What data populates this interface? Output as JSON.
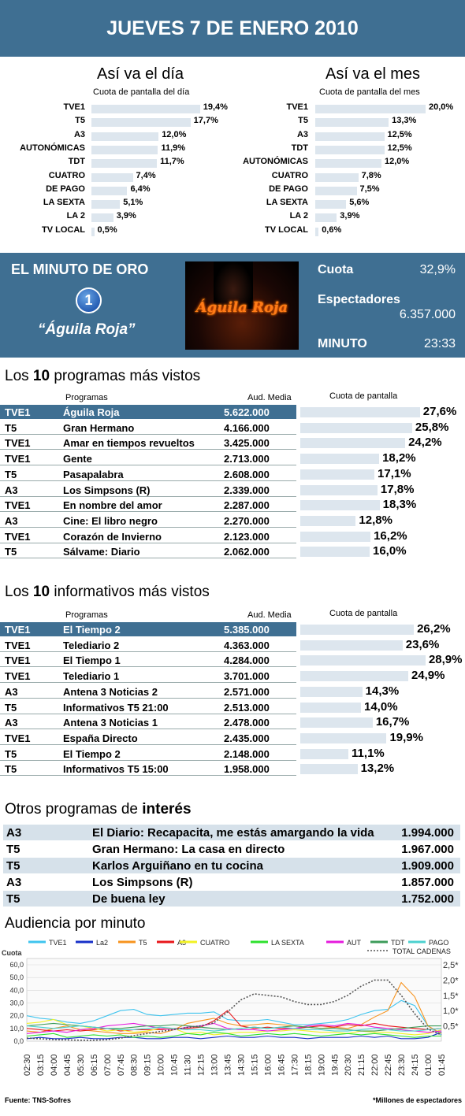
{
  "header": {
    "title": "JUEVES 7 DE ENERO 2010"
  },
  "dia": {
    "title": "Así va el día",
    "subtitle": "Cuota de pantalla del día",
    "rows": [
      {
        "label": "TVE1",
        "value": 19.4,
        "text": "19,4%"
      },
      {
        "label": "T5",
        "value": 17.7,
        "text": "17,7%"
      },
      {
        "label": "A3",
        "value": 12.0,
        "text": "12,0%"
      },
      {
        "label": "AUTONÓMICAS",
        "value": 11.9,
        "text": "11,9%"
      },
      {
        "label": "TDT",
        "value": 11.7,
        "text": "11,7%"
      },
      {
        "label": "CUATRO",
        "value": 7.4,
        "text": "7,4%"
      },
      {
        "label": "DE PAGO",
        "value": 6.4,
        "text": "6,4%"
      },
      {
        "label": "LA SEXTA",
        "value": 5.1,
        "text": "5,1%"
      },
      {
        "label": "LA 2",
        "value": 3.9,
        "text": "3,9%"
      },
      {
        "label": "TV LOCAL",
        "value": 0.5,
        "text": "0,5%"
      }
    ]
  },
  "mes": {
    "title": "Así va el mes",
    "subtitle": "Cuota de pantalla del mes",
    "rows": [
      {
        "label": "TVE1",
        "value": 20.0,
        "text": "20,0%"
      },
      {
        "label": "T5",
        "value": 13.3,
        "text": "13,3%"
      },
      {
        "label": "A3",
        "value": 12.5,
        "text": "12,5%"
      },
      {
        "label": "TDT",
        "value": 12.5,
        "text": "12,5%"
      },
      {
        "label": "AUTONÓMICAS",
        "value": 12.0,
        "text": "12,0%"
      },
      {
        "label": "CUATRO",
        "value": 7.8,
        "text": "7,8%"
      },
      {
        "label": "DE PAGO",
        "value": 7.5,
        "text": "7,5%"
      },
      {
        "label": "LA SEXTA",
        "value": 5.6,
        "text": "5,6%"
      },
      {
        "label": "LA 2",
        "value": 3.9,
        "text": "3,9%"
      },
      {
        "label": "TV LOCAL",
        "value": 0.6,
        "text": "0,6%"
      }
    ]
  },
  "minuto_oro": {
    "title": "EL MINUTO DE ORO",
    "channel_badge": "1",
    "program": "“Águila Roja”",
    "image_caption": "Águila Roja",
    "cuota_label": "Cuota",
    "cuota_value": "32,9%",
    "espectadores_label": "Espectadores",
    "espectadores_value": "6.357.000",
    "minuto_label": "MINUTO",
    "minuto_value": "23:33"
  },
  "programas": {
    "title_pre": "Los ",
    "title_bold": "10",
    "title_post": " programas más vistos",
    "col_programas": "Programas",
    "col_aud": "Aud. Media",
    "col_cuota": "Cuota de pantalla",
    "rows": [
      {
        "canal": "TVE1",
        "programa": "Águila Roja",
        "aud": "5.622.000",
        "cuota": 27.6,
        "cuota_text": "27,6%",
        "highlight": true
      },
      {
        "canal": "T5",
        "programa": "Gran Hermano",
        "aud": "4.166.000",
        "cuota": 25.8,
        "cuota_text": "25,8%"
      },
      {
        "canal": "TVE1",
        "programa": "Amar en tiempos revueltos",
        "aud": "3.425.000",
        "cuota": 24.2,
        "cuota_text": "24,2%"
      },
      {
        "canal": "TVE1",
        "programa": "Gente",
        "aud": "2.713.000",
        "cuota": 18.2,
        "cuota_text": "18,2%"
      },
      {
        "canal": "T5",
        "programa": "Pasapalabra",
        "aud": "2.608.000",
        "cuota": 17.1,
        "cuota_text": "17,1%"
      },
      {
        "canal": "A3",
        "programa": "Los Simpsons (R)",
        "aud": "2.339.000",
        "cuota": 17.8,
        "cuota_text": "17,8%"
      },
      {
        "canal": "TVE1",
        "programa": "En nombre del amor",
        "aud": "2.287.000",
        "cuota": 18.3,
        "cuota_text": "18,3%"
      },
      {
        "canal": "A3",
        "programa": "Cine: El libro negro",
        "aud": "2.270.000",
        "cuota": 12.8,
        "cuota_text": "12,8%"
      },
      {
        "canal": "TVE1",
        "programa": "Corazón de Invierno",
        "aud": "2.123.000",
        "cuota": 16.2,
        "cuota_text": "16,2%"
      },
      {
        "canal": "T5",
        "programa": "Sálvame: Diario",
        "aud": "2.062.000",
        "cuota": 16.0,
        "cuota_text": "16,0%"
      }
    ]
  },
  "informativos": {
    "title_pre": "Los ",
    "title_bold": "10",
    "title_post": " informativos más vistos",
    "col_programas": "Programas",
    "col_aud": "Aud. Media",
    "col_cuota": "Cuota de pantalla",
    "rows": [
      {
        "canal": "TVE1",
        "programa": "El Tiempo 2",
        "aud": "5.385.000",
        "cuota": 26.2,
        "cuota_text": "26,2%",
        "highlight": true
      },
      {
        "canal": "TVE1",
        "programa": "Telediario 2",
        "aud": "4.363.000",
        "cuota": 23.6,
        "cuota_text": "23,6%"
      },
      {
        "canal": "TVE1",
        "programa": "El Tiempo 1",
        "aud": "4.284.000",
        "cuota": 28.9,
        "cuota_text": "28,9%"
      },
      {
        "canal": "TVE1",
        "programa": "Telediario 1",
        "aud": "3.701.000",
        "cuota": 24.9,
        "cuota_text": "24,9%"
      },
      {
        "canal": "A3",
        "programa": "Antena 3 Noticias 2",
        "aud": "2.571.000",
        "cuota": 14.3,
        "cuota_text": "14,3%"
      },
      {
        "canal": "T5",
        "programa": "Informativos T5 21:00",
        "aud": "2.513.000",
        "cuota": 14.0,
        "cuota_text": "14,0%"
      },
      {
        "canal": "A3",
        "programa": "Antena 3 Noticias 1",
        "aud": "2.478.000",
        "cuota": 16.7,
        "cuota_text": "16,7%"
      },
      {
        "canal": "TVE1",
        "programa": "España Directo",
        "aud": "2.435.000",
        "cuota": 19.9,
        "cuota_text": "19,9%"
      },
      {
        "canal": "T5",
        "programa": "El Tiempo 2",
        "aud": "2.148.000",
        "cuota": 11.1,
        "cuota_text": "11,1%"
      },
      {
        "canal": "T5",
        "programa": "Informativos T5 15:00",
        "aud": "1.958.000",
        "cuota": 13.2,
        "cuota_text": "13,2%"
      }
    ]
  },
  "otros": {
    "title_pre": "Otros programas de ",
    "title_bold": "interés",
    "rows": [
      {
        "canal": "A3",
        "programa": "El Diario: Recapacita, me estás amargando la vida",
        "aud": "1.994.000"
      },
      {
        "canal": "T5",
        "programa": "Gran Hermano: La casa en directo",
        "aud": "1.967.000"
      },
      {
        "canal": "T5",
        "programa": "Karlos Arguiñano en tu cocina",
        "aud": "1.909.000"
      },
      {
        "canal": "A3",
        "programa": "Los Simpsons (R)",
        "aud": "1.857.000"
      },
      {
        "canal": "T5",
        "programa": "De buena ley",
        "aud": "1.752.000"
      }
    ]
  },
  "chart_data": {
    "type": "line",
    "title": "Audiencia por minuto",
    "ylabel": "Cuota",
    "ylim": [
      0,
      60
    ],
    "yticks": [
      "60,0",
      "50,0",
      "40,0",
      "30,0",
      "20,0",
      "10,0",
      "0,0"
    ],
    "y2lim": [
      0,
      2.5
    ],
    "y2ticks": [
      "2,5*",
      "2,0*",
      "1,5*",
      "1,0*",
      "0,5*"
    ],
    "categories": [
      "02:30",
      "03:15",
      "04:00",
      "04:45",
      "05:30",
      "06:15",
      "07:00",
      "07:45",
      "08:30",
      "09:15",
      "10:00",
      "10:45",
      "11:30",
      "12:15",
      "13:00",
      "13:45",
      "14:30",
      "15:15",
      "16:00",
      "16:45",
      "17:30",
      "18:15",
      "19:00",
      "19:45",
      "20:30",
      "21:15",
      "22:00",
      "22:45",
      "23:30",
      "24:15",
      "01:00",
      "01:45"
    ],
    "series": [
      {
        "name": "TVE1",
        "color": "#3fc4ee",
        "axis": "left",
        "values": [
          20,
          18,
          17,
          15,
          14,
          16,
          20,
          24,
          25,
          21,
          20,
          21,
          22,
          22,
          23,
          17,
          16,
          16,
          17,
          15,
          13,
          13,
          14,
          15,
          17,
          21,
          24,
          25,
          32,
          28,
          12,
          5
        ]
      },
      {
        "name": "La2",
        "color": "#1730c8",
        "axis": "left",
        "values": [
          2,
          3,
          2,
          2,
          3,
          2,
          2,
          3,
          3,
          2,
          2,
          3,
          3,
          2,
          3,
          4,
          3,
          3,
          4,
          3,
          3,
          2,
          3,
          3,
          3,
          4,
          3,
          4,
          2,
          2,
          3,
          7
        ]
      },
      {
        "name": "T5",
        "color": "#f7931e",
        "axis": "left",
        "values": [
          8,
          7,
          10,
          12,
          9,
          8,
          7,
          6,
          6,
          7,
          6,
          9,
          14,
          16,
          18,
          14,
          12,
          13,
          14,
          13,
          12,
          11,
          10,
          11,
          10,
          13,
          19,
          24,
          46,
          35,
          12,
          6
        ]
      },
      {
        "name": "A3",
        "color": "#e8161b",
        "axis": "left",
        "values": [
          10,
          9,
          8,
          9,
          8,
          9,
          10,
          8,
          9,
          9,
          9,
          10,
          10,
          11,
          16,
          24,
          12,
          10,
          11,
          10,
          10,
          11,
          12,
          11,
          13,
          12,
          14,
          12,
          11,
          10,
          9,
          10
        ]
      },
      {
        "name": "CUATRO",
        "color": "#f2f224",
        "axis": "left",
        "values": [
          14,
          15,
          17,
          13,
          12,
          10,
          8,
          9,
          7,
          8,
          10,
          10,
          6,
          7,
          5,
          6,
          7,
          7,
          8,
          8,
          9,
          8,
          7,
          7,
          6,
          8,
          7,
          7,
          6,
          5,
          6,
          9
        ]
      },
      {
        "name": "LA SEXTA",
        "color": "#2ee12e",
        "axis": "left",
        "values": [
          4,
          5,
          6,
          3,
          4,
          5,
          4,
          5,
          3,
          4,
          3,
          4,
          6,
          5,
          7,
          6,
          4,
          5,
          6,
          5,
          6,
          5,
          4,
          5,
          6,
          5,
          6,
          5,
          4,
          3,
          4,
          4
        ]
      },
      {
        "name": "AUT",
        "color": "#e51bdc",
        "axis": "left",
        "values": [
          6,
          7,
          8,
          7,
          9,
          10,
          12,
          13,
          14,
          12,
          10,
          9,
          11,
          12,
          14,
          10,
          9,
          9,
          8,
          9,
          10,
          12,
          13,
          12,
          14,
          13,
          11,
          10,
          9,
          8,
          7,
          8
        ]
      },
      {
        "name": "TDT",
        "color": "#3d9c5a",
        "axis": "left",
        "values": [
          12,
          13,
          14,
          13,
          12,
          11,
          10,
          10,
          11,
          12,
          12,
          13,
          12,
          11,
          10,
          9,
          10,
          11,
          10,
          11,
          12,
          11,
          10,
          10,
          9,
          8,
          8,
          9,
          10,
          11,
          12,
          12
        ]
      },
      {
        "name": "PAGO",
        "color": "#4cd1cf",
        "axis": "left",
        "values": [
          12,
          11,
          10,
          11,
          12,
          11,
          10,
          9,
          9,
          10,
          11,
          10,
          9,
          9,
          8,
          9,
          10,
          11,
          10,
          11,
          10,
          9,
          9,
          8,
          8,
          9,
          10,
          9,
          8,
          8,
          9,
          10
        ]
      },
      {
        "name": "TOTAL CADENAS",
        "color": "#555555",
        "axis": "right",
        "values": [
          0.1,
          0.08,
          0.05,
          0.04,
          0.03,
          0.03,
          0.05,
          0.1,
          0.18,
          0.25,
          0.32,
          0.38,
          0.45,
          0.5,
          0.6,
          0.95,
          1.35,
          1.55,
          1.5,
          1.45,
          1.3,
          1.2,
          1.2,
          1.3,
          1.5,
          1.8,
          2.0,
          2.0,
          1.5,
          0.9,
          0.4,
          0.2
        ]
      }
    ]
  },
  "footer": {
    "source": "Fuente: TNS-Sofres",
    "note": "*Millones de espectadores"
  }
}
